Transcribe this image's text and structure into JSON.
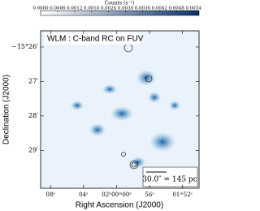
{
  "chart_data": {
    "type": "image",
    "colorbar": {
      "label": "Counts (s⁻¹)",
      "clim": [
        0,
        0.0056
      ],
      "ticks": [
        {
          "value": 0,
          "label": "0.0000"
        },
        {
          "value": 0.0006,
          "label": "0.0006"
        },
        {
          "value": 0.0012,
          "label": "0.0012"
        },
        {
          "value": 0.0018,
          "label": "0.0018"
        },
        {
          "value": 0.0024,
          "label": "0.0024"
        },
        {
          "value": 0.003,
          "label": "0.0030"
        },
        {
          "value": 0.0036,
          "label": "0.0036"
        },
        {
          "value": 0.0042,
          "label": "0.0042"
        },
        {
          "value": 0.0048,
          "label": "0.0048"
        },
        {
          "value": 0.0054,
          "label": "0.0054"
        }
      ],
      "colors": [
        "#ffffff",
        "#08306b"
      ]
    },
    "annotation": "WLM : C-band RC on FUV",
    "scale_bar": "30.0″ = 145 pc",
    "x_label": "Right Ascension (J2000)",
    "y_label": "Declination (J2000)",
    "xlim": [
      9.2,
      -10
    ],
    "xticks": [
      {
        "value": 8,
        "label": "08ˢ"
      },
      {
        "value": 4,
        "label": "04ˢ"
      },
      {
        "value": 0,
        "label": "02ʰ00ᵐ00ˢ"
      },
      {
        "value": -4,
        "label": "56ˢ"
      },
      {
        "value": -8,
        "label": "01ᵐ52ˢ"
      }
    ],
    "ylim": [
      -30.1,
      -25.53
    ],
    "yticks": [
      {
        "value": -26,
        "label": "−15°26′"
      },
      {
        "value": -27,
        "label": "27′"
      },
      {
        "value": -28,
        "label": "28′"
      },
      {
        "value": -29,
        "label": "29′"
      }
    ]
  }
}
